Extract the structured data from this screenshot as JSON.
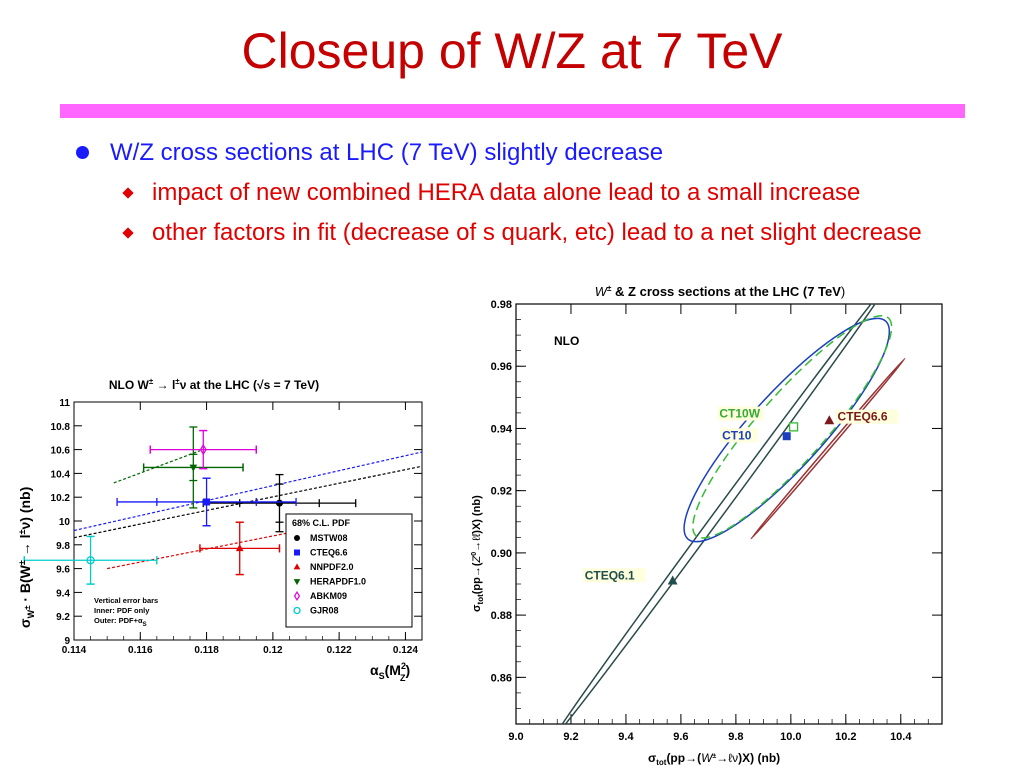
{
  "slide": {
    "title": "Closeup of W/Z at 7 TeV",
    "bullets": {
      "main": "W/Z cross sections at LHC (7 TeV) slightly decrease",
      "sub": [
        "impact of new combined HERA data alone lead to a small increase",
        "other factors in fit (decrease of s quark, etc) lead to a net slight decrease"
      ]
    }
  },
  "colors": {
    "title": "#c40000",
    "rule": "#ff66ff",
    "bullet_main": "#1a1aff",
    "bullet_sub": "#e00000"
  },
  "chart_data": [
    {
      "type": "scatter",
      "title_parts": {
        "pre": "NLO W",
        "sup": "±",
        "post": " → l",
        "sup2": "±",
        "post2": "ν at the LHC (√s = 7 TeV)"
      },
      "ylabel_parts": {
        "sigma": "σ",
        "sub": "W",
        "subsup": "±",
        "rest": " · B(W",
        "rsup": "±",
        "rest2": " → l",
        "rsup2": "±",
        "rest3": "ν)  (nb)"
      },
      "xlabel_parts": {
        "alpha": "α",
        "sub": "S",
        "open": "(M",
        "sup": "2",
        "sub2": "Z",
        "close": ")"
      },
      "xlim": [
        0.114,
        0.1245
      ],
      "ylim": [
        9,
        11
      ],
      "x_ticks": [
        0.114,
        0.116,
        0.118,
        0.12,
        0.122,
        0.124
      ],
      "x_tick_labels": [
        "0.114",
        "0.116",
        "0.118",
        "0.12",
        "0.122",
        "0.124"
      ],
      "y_ticks": [
        9,
        9.2,
        9.4,
        9.6,
        9.8,
        10,
        10.2,
        10.4,
        10.6,
        10.8,
        11
      ],
      "y_tick_labels": [
        "9",
        "9.2",
        "9.4",
        "9.6",
        "9.8",
        "10",
        "10.2",
        "10.4",
        "10.6",
        "10.8",
        "11"
      ],
      "lines": [
        {
          "color": "#1a1aff",
          "x": [
            0.114,
            0.1245
          ],
          "y": [
            9.92,
            10.58
          ]
        },
        {
          "color": "#000000",
          "x": [
            0.114,
            0.1245
          ],
          "y": [
            9.86,
            10.46
          ]
        },
        {
          "color": "#006600",
          "x": [
            0.1152,
            0.1178
          ],
          "y": [
            10.32,
            10.59
          ]
        },
        {
          "color": "#e00000",
          "x": [
            0.115,
            0.1232
          ],
          "y": [
            9.6,
            10.05
          ]
        }
      ],
      "series": [
        {
          "name": "MSTW08",
          "color": "#000000",
          "marker": "circle",
          "x": 0.1202,
          "y": 10.15,
          "x_err_in": 0.0012,
          "x_err_out": 0.0023,
          "y_err_in": 0.16,
          "y_err_out": 0.24
        },
        {
          "name": "CTEQ6.6",
          "color": "#1a1aff",
          "marker": "square",
          "x": 0.118,
          "y": 10.16,
          "x_err_in": 0.0015,
          "x_err_out": 0.0027,
          "y_err_in": 0.2,
          "y_err_out": 0.2
        },
        {
          "name": "NNPDF2.0",
          "color": "#e00000",
          "marker": "triangle-up",
          "x": 0.119,
          "y": 9.77,
          "x_err_in": 0.0012,
          "x_err_out": 0.0012,
          "y_err_in": 0.22,
          "y_err_out": 0.22
        },
        {
          "name": "HERAPDF1.0",
          "color": "#006600",
          "marker": "triangle-down",
          "x": 0.1176,
          "y": 10.45,
          "x_err_in": 0.0015,
          "x_err_out": 0.0015,
          "y_err_in": 0.11,
          "y_err_out": 0.34
        },
        {
          "name": "ABKM09",
          "color": "#dd00dd",
          "marker": "diamond",
          "x": 0.1179,
          "y": 10.6,
          "x_err_in": 0.0016,
          "x_err_out": 0.0016,
          "y_err_in": 0.16,
          "y_err_out": 0.16
        },
        {
          "name": "GJR08",
          "color": "#00cccc",
          "marker": "circle-open",
          "x": 0.1145,
          "y": 9.67,
          "x_err_in": 0.002,
          "x_err_out": 0.002,
          "y_err_in": 0.2,
          "y_err_out": 0.2
        }
      ],
      "legend_header": "68% C.L. PDF",
      "notes": [
        "Vertical error bars",
        "Inner: PDF only"
      ],
      "note_outer": {
        "pre": "Outer: PDF+α",
        "sub": "S"
      }
    },
    {
      "type": "scatter",
      "title_parts": {
        "w": "W",
        "wsup": "±",
        "rest": " & Z cross sections at the LHC (",
        "tev": "7 TeV",
        "close": ")"
      },
      "annotation": "NLO",
      "xlabel_parts": {
        "sigma": "σ",
        "sub": "tot",
        "rest": "(pp→(",
        "w": "W",
        "wsup": "±",
        "arrow": "→ℓν",
        "rest2": ")X) (nb)"
      },
      "ylabel_parts": {
        "sigma": "σ",
        "sub": "tot",
        "rest": "(pp→(",
        "z": "Z",
        "zsup": "0",
        "arrow": "→ℓℓ̄",
        "rest2": ")X) (nb)"
      },
      "xlim": [
        9.0,
        10.55
      ],
      "ylim": [
        0.845,
        0.98
      ],
      "x_ticks": [
        9.0,
        9.2,
        9.4,
        9.6,
        9.8,
        10.0,
        10.2,
        10.4
      ],
      "x_tick_labels": [
        "9.0",
        "9.2",
        "9.4",
        "9.6",
        "9.8",
        "10.0",
        "10.2",
        "10.4"
      ],
      "y_ticks": [
        0.86,
        0.88,
        0.9,
        0.92,
        0.94,
        0.96,
        0.98
      ],
      "y_tick_labels": [
        "0.86",
        "0.88",
        "0.90",
        "0.92",
        "0.94",
        "0.96",
        "0.98"
      ],
      "ellipses": [
        {
          "name": "CTEQ6.1",
          "color": "#2a4a4a",
          "dash": false,
          "cx": 9.745,
          "cy": 0.9135,
          "rx_nb": 0.6,
          "ry_nb": 0.072,
          "thin": 0.015
        },
        {
          "name": "CTEQ6.6",
          "color": "#993333",
          "dash": false,
          "cx": 10.135,
          "cy": 0.9335,
          "rx_nb": 0.28,
          "ry_nb": 0.029,
          "thin": 0.012
        },
        {
          "name": "CT10",
          "color": "#1a3fbf",
          "dash": false,
          "cx": 9.985,
          "cy": 0.9395,
          "rx_nb": 0.36,
          "ry_nb": 0.035,
          "thin": 0.25
        },
        {
          "name": "CT10W",
          "color": "#33bb33",
          "dash": true,
          "cx": 10.005,
          "cy": 0.9405,
          "rx_nb": 0.35,
          "ry_nb": 0.035,
          "thin": 0.23
        }
      ],
      "points": [
        {
          "name": "CTEQ6.1",
          "color": "#1e4e4e",
          "marker": "triangle",
          "x": 9.57,
          "y": 0.891
        },
        {
          "name": "CTEQ6.6",
          "color": "#7a1a1a",
          "marker": "triangle",
          "x": 10.14,
          "y": 0.9425
        },
        {
          "name": "CT10",
          "color": "#1a3fbf",
          "marker": "square",
          "x": 9.985,
          "y": 0.9375
        },
        {
          "name": "CT10W",
          "color": "#33bb33",
          "marker": "square-open",
          "x": 10.01,
          "y": 0.9405
        }
      ],
      "labels": [
        {
          "text": "CT10W",
          "x": 9.74,
          "y": 0.9435,
          "color": "#33aa33"
        },
        {
          "text": "CT10",
          "x": 9.75,
          "y": 0.9365,
          "color": "#1a3fbf"
        },
        {
          "text": "CTEQ6.6",
          "x": 10.17,
          "y": 0.9425,
          "color": "#7a1a1a"
        },
        {
          "text": "CTEQ6.1",
          "x": 9.25,
          "y": 0.8915,
          "color": "#1e4e4e"
        }
      ]
    }
  ]
}
